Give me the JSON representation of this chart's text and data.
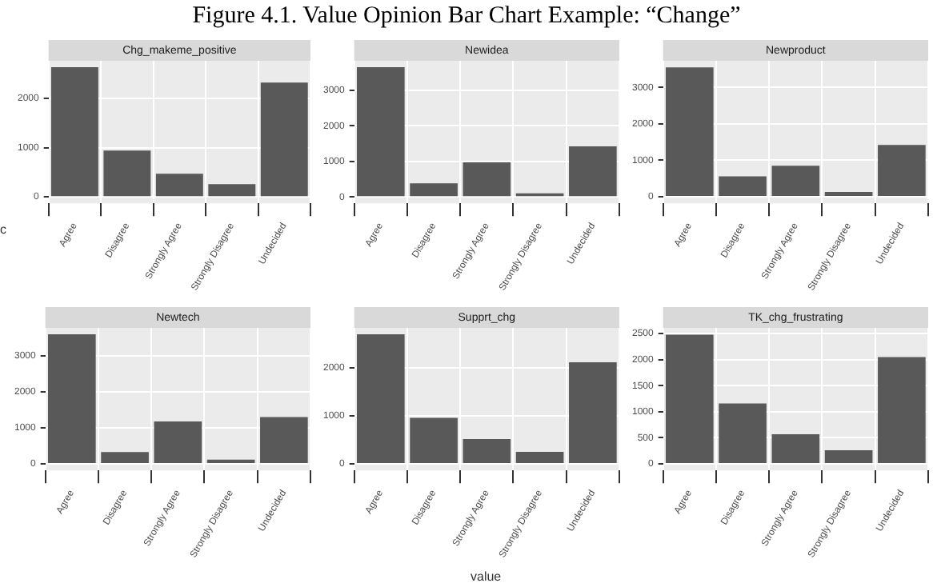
{
  "chart_data": [
    {
      "type": "bar",
      "title": "Figure 4.1. Value Opinion Bar Chart Example: “Change”",
      "subtitle": "Chg_makeme_positive",
      "ylabel": "c",
      "categories": [
        "Agree",
        "Disagree",
        "Strongly Agree",
        "Strongly Disagree",
        "Undecided"
      ],
      "values": [
        2630,
        940,
        470,
        260,
        2320
      ],
      "color": "#595959",
      "ylim": [
        -130,
        2760
      ],
      "yticks": [
        0,
        1000,
        2000
      ],
      "grid": true
    },
    {
      "type": "bar",
      "subtitle": "Newidea",
      "categories": [
        "Agree",
        "Disagree",
        "Strongly Agree",
        "Strongly Disagree",
        "Undecided"
      ],
      "values": [
        3650,
        380,
        970,
        100,
        1420
      ],
      "color": "#595959",
      "ylim": [
        -180,
        3830
      ],
      "yticks": [
        0,
        1000,
        2000,
        3000
      ],
      "grid": true
    },
    {
      "type": "bar",
      "subtitle": "Newproduct",
      "categories": [
        "Agree",
        "Disagree",
        "Strongly Agree",
        "Strongly Disagree",
        "Undecided"
      ],
      "values": [
        3550,
        560,
        850,
        130,
        1420
      ],
      "color": "#595959",
      "ylim": [
        -180,
        3730
      ],
      "yticks": [
        0,
        1000,
        2000,
        3000
      ],
      "grid": true
    },
    {
      "type": "bar",
      "subtitle": "Newtech",
      "categories": [
        "Agree",
        "Disagree",
        "Strongly Agree",
        "Strongly Disagree",
        "Undecided"
      ],
      "values": [
        3600,
        330,
        1180,
        120,
        1300
      ],
      "color": "#595959",
      "ylim": [
        -180,
        3780
      ],
      "yticks": [
        0,
        1000,
        2000,
        3000
      ],
      "grid": true
    },
    {
      "type": "bar",
      "subtitle": "Supprt_chg",
      "xlabel": "value",
      "categories": [
        "Agree",
        "Disagree",
        "Strongly Agree",
        "Strongly Disagree",
        "Undecided"
      ],
      "values": [
        2700,
        960,
        520,
        250,
        2120
      ],
      "color": "#595959",
      "ylim": [
        -135,
        2835
      ],
      "yticks": [
        0,
        1000,
        2000
      ],
      "grid": true
    },
    {
      "type": "bar",
      "subtitle": "TK_chg_frustrating",
      "categories": [
        "Agree",
        "Disagree",
        "Strongly Agree",
        "Strongly Disagree",
        "Undecided"
      ],
      "values": [
        2480,
        1160,
        570,
        260,
        2050
      ],
      "color": "#595959",
      "ylim": [
        -125,
        2610
      ],
      "yticks": [
        0,
        500,
        1000,
        1500,
        2000,
        2500
      ],
      "grid": true
    }
  ]
}
